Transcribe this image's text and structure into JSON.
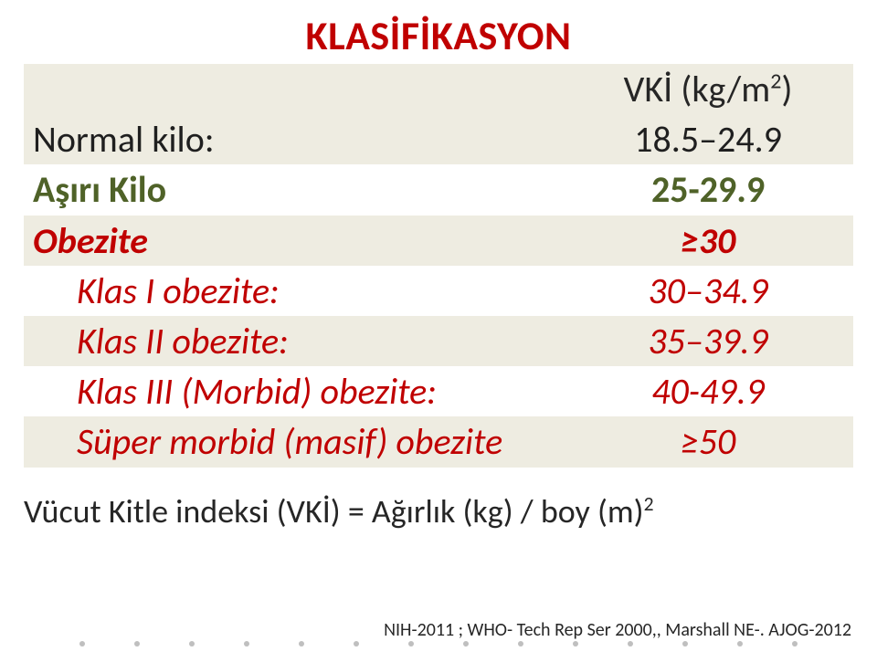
{
  "title": {
    "text": "KLASİFİKASYON",
    "color": "#c00000"
  },
  "header": {
    "value_label": "VKİ (kg/m",
    "value_label_sup": "2",
    "value_label_close": ")"
  },
  "rows": [
    {
      "label": "Normal kilo:",
      "value": "18.5–24.9",
      "band": true,
      "text_class": "black",
      "indent": false
    },
    {
      "label": "Aşırı Kilo",
      "value": "25-29.9",
      "band": false,
      "text_class": "olive",
      "indent": false
    },
    {
      "label": "Obezite",
      "value": "≥30",
      "band": true,
      "text_class": "red bold",
      "indent": false
    },
    {
      "label": "Klas I obezite:",
      "value": "30–34.9",
      "band": false,
      "text_class": "red",
      "indent": true
    },
    {
      "label": "Klas II obezite:",
      "value": "35–39.9",
      "band": true,
      "text_class": "red",
      "indent": true
    },
    {
      "label": "Klas III (Morbid) obezite:",
      "value": "40-49.9",
      "band": false,
      "text_class": "red",
      "indent": true
    },
    {
      "label": "Süper morbid (masif) obezite",
      "value": "≥50",
      "band": true,
      "text_class": "red",
      "indent": true
    }
  ],
  "footer": {
    "pre": "Vücut Kitle indeksi (VKİ)  = Ağırlık (kg) / boy (m)",
    "sup": "2"
  },
  "citation": "NIH-2011 ; WHO-  Tech Rep Ser 2000,, Marshall NE-. AJOG-2012",
  "colors": {
    "band_bg": "#eeece1",
    "title": "#c00000",
    "olive": "#4f6228",
    "red": "#c00000",
    "black": "#1f1f1f"
  }
}
